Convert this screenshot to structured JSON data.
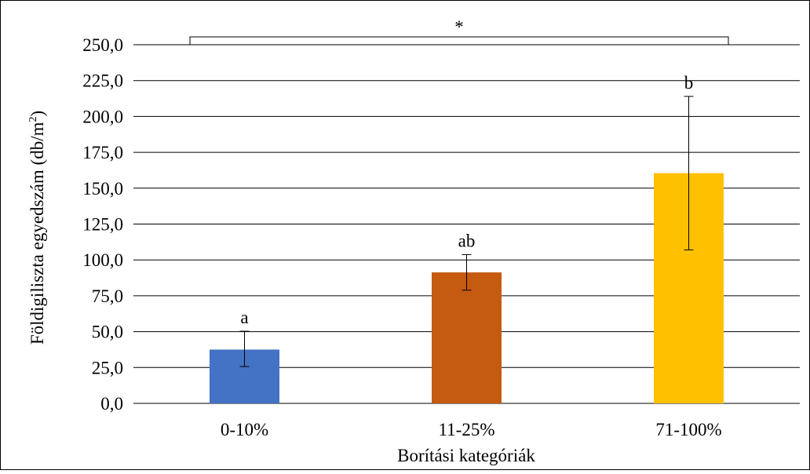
{
  "chart_data": {
    "type": "bar",
    "title": "",
    "xlabel": "Borítási kategóriák",
    "ylabel_main": "Földigiliszta egyedszám (db/m",
    "ylabel_sup": "2",
    "ylabel_close": ")",
    "ylim": [
      0,
      250
    ],
    "ytick_values": [
      0,
      25,
      50,
      75,
      100,
      125,
      150,
      175,
      200,
      225,
      250
    ],
    "ytick_labels": [
      "0,0",
      "25,0",
      "50,0",
      "75,0",
      "100,0",
      "125,0",
      "150,0",
      "175,0",
      "200,0",
      "225,0",
      "250,0"
    ],
    "grid": true,
    "categories": [
      "0-10%",
      "11-25%",
      "71-100%"
    ],
    "values": [
      37.5,
      91.3,
      160.5
    ],
    "error_low": [
      25.7,
      78.9,
      107.0
    ],
    "error_high": [
      50.3,
      103.7,
      214.0
    ],
    "colors": [
      "#4472C4",
      "#C55A11",
      "#FFC000"
    ],
    "significance_labels": [
      "a",
      "ab",
      "b"
    ],
    "significance_bracket": {
      "from": "0-10%",
      "to": "71-100%",
      "label": "*"
    }
  }
}
